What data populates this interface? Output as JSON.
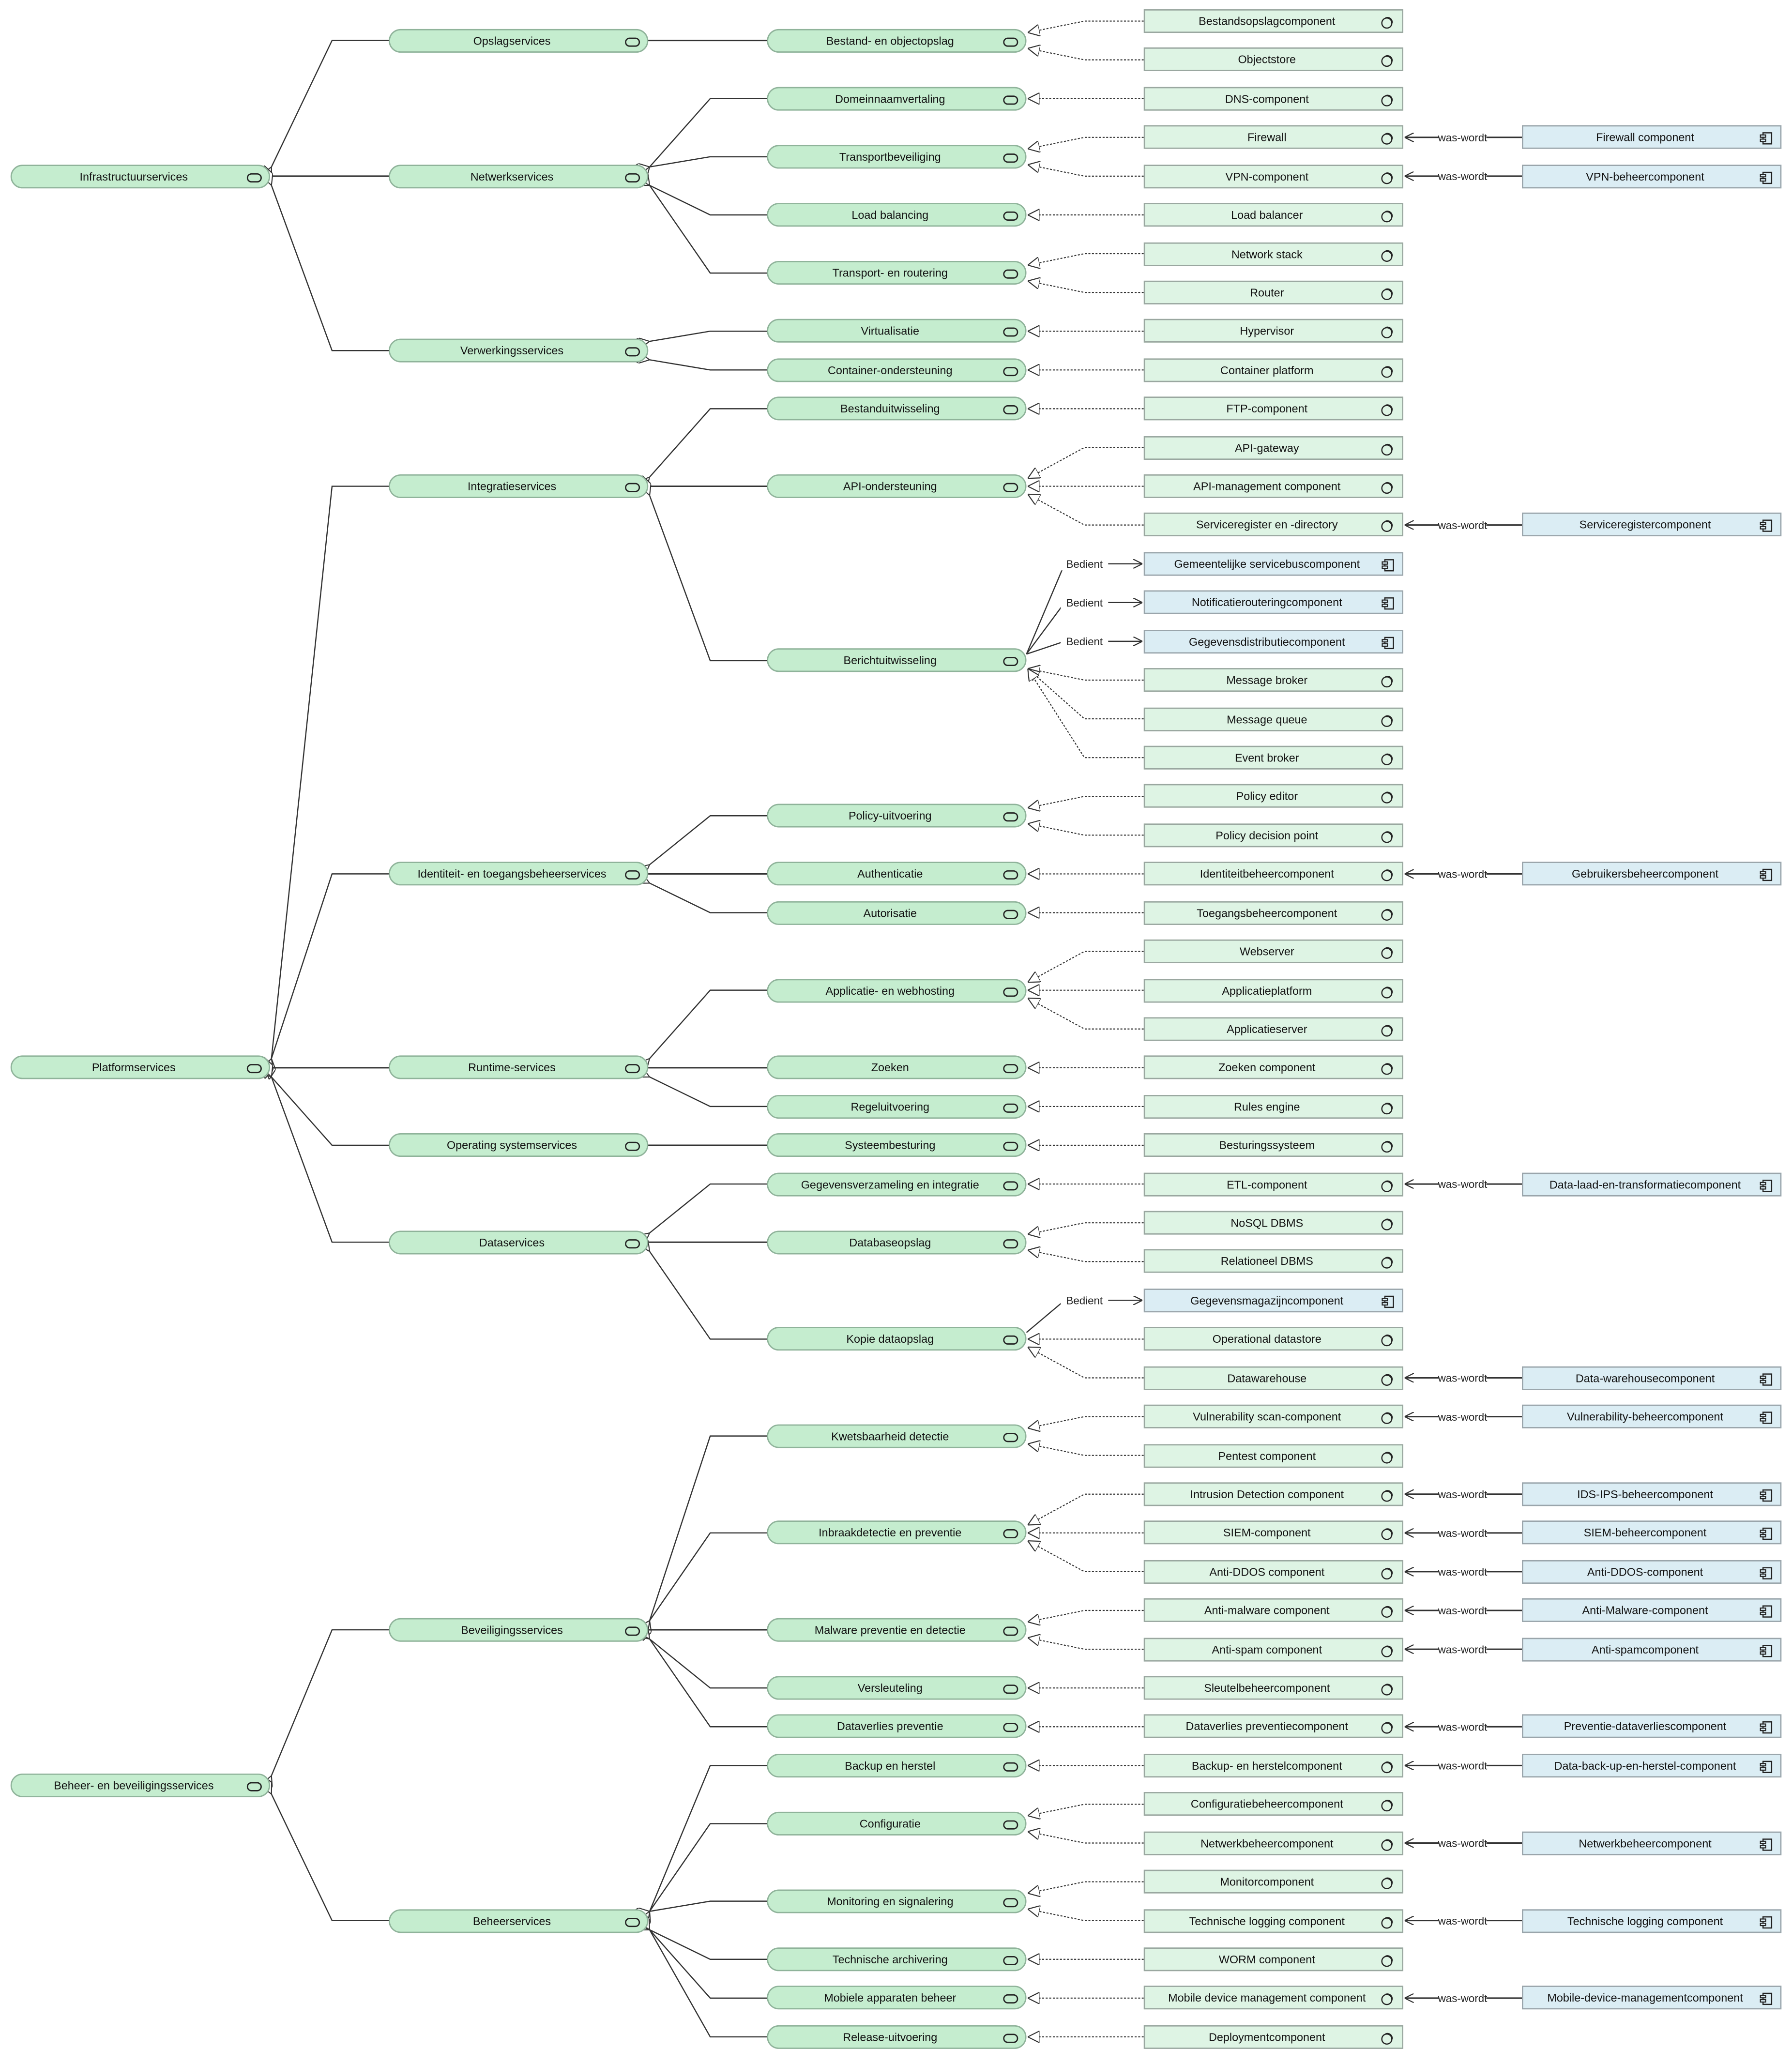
{
  "relation_labels": {
    "successor": "was-wordt",
    "serves": "Bedient"
  },
  "colors": {
    "service_fill": "#c5edcf",
    "system_software_fill": "#def4e4",
    "application_component_fill": "#dbedf4",
    "line": "#333333"
  },
  "icons": {
    "service": "service-icon",
    "system_software": "system-software-icon",
    "application_component": "component-icon"
  },
  "diagram": {
    "domains": [
      {
        "label": "Infrastructuurservices",
        "groups": [
          {
            "label": "Opslagservices",
            "services": [
              {
                "label": "Bestand- en objectopslag",
                "elements": [
                  {
                    "label": "Bestandsopslagcomponent",
                    "kind": "system-software",
                    "relation": "realizes"
                  },
                  {
                    "label": "Objectstore",
                    "kind": "system-software",
                    "relation": "realizes"
                  }
                ]
              }
            ]
          },
          {
            "label": "Netwerkservices",
            "services": [
              {
                "label": "Domeinnaamvertaling",
                "elements": [
                  {
                    "label": "DNS-component",
                    "kind": "system-software",
                    "relation": "realizes"
                  }
                ]
              },
              {
                "label": "Transportbeveiliging",
                "elements": [
                  {
                    "label": "Firewall",
                    "kind": "system-software",
                    "relation": "realizes",
                    "successor": "Firewall component"
                  },
                  {
                    "label": "VPN-component",
                    "kind": "system-software",
                    "relation": "realizes",
                    "successor": "VPN-beheercomponent"
                  }
                ]
              },
              {
                "label": "Load balancing",
                "elements": [
                  {
                    "label": "Load balancer",
                    "kind": "system-software",
                    "relation": "realizes"
                  }
                ]
              },
              {
                "label": "Transport- en routering",
                "elements": [
                  {
                    "label": "Network stack",
                    "kind": "system-software",
                    "relation": "realizes"
                  },
                  {
                    "label": "Router",
                    "kind": "system-software",
                    "relation": "realizes"
                  }
                ]
              }
            ]
          },
          {
            "label": "Verwerkingsservices",
            "services": [
              {
                "label": "Virtualisatie",
                "elements": [
                  {
                    "label": "Hypervisor",
                    "kind": "system-software",
                    "relation": "realizes"
                  }
                ]
              },
              {
                "label": "Container-ondersteuning",
                "elements": [
                  {
                    "label": "Container platform",
                    "kind": "system-software",
                    "relation": "realizes"
                  }
                ]
              }
            ]
          }
        ]
      },
      {
        "label": "Platformservices",
        "groups": [
          {
            "label": "Integratieservices",
            "services": [
              {
                "label": "Bestanduitwisseling",
                "elements": [
                  {
                    "label": "FTP-component",
                    "kind": "system-software",
                    "relation": "realizes"
                  }
                ]
              },
              {
                "label": "API-ondersteuning",
                "elements": [
                  {
                    "label": "API-gateway",
                    "kind": "system-software",
                    "relation": "realizes"
                  },
                  {
                    "label": "API-management component",
                    "kind": "system-software",
                    "relation": "realizes"
                  },
                  {
                    "label": "Serviceregister en -directory",
                    "kind": "system-software",
                    "relation": "realizes",
                    "successor": "Serviceregistercomponent"
                  }
                ]
              },
              {
                "label": "Berichtuitwisseling",
                "elements": [
                  {
                    "label": "Gemeentelijke servicebuscomponent",
                    "kind": "application-component",
                    "relation": "serves"
                  },
                  {
                    "label": "Notificatierouteringcomponent",
                    "kind": "application-component",
                    "relation": "serves"
                  },
                  {
                    "label": "Gegevensdistributiecomponent",
                    "kind": "application-component",
                    "relation": "serves"
                  },
                  {
                    "label": "Message broker",
                    "kind": "system-software",
                    "relation": "realizes"
                  },
                  {
                    "label": "Message queue",
                    "kind": "system-software",
                    "relation": "realizes"
                  },
                  {
                    "label": "Event broker",
                    "kind": "system-software",
                    "relation": "realizes"
                  }
                ]
              }
            ]
          },
          {
            "label": "Identiteit- en toegangsbeheerservices",
            "services": [
              {
                "label": "Policy-uitvoering",
                "elements": [
                  {
                    "label": "Policy editor",
                    "kind": "system-software",
                    "relation": "realizes"
                  },
                  {
                    "label": "Policy decision point",
                    "kind": "system-software",
                    "relation": "realizes"
                  }
                ]
              },
              {
                "label": "Authenticatie",
                "elements": [
                  {
                    "label": "Identiteitbeheercomponent",
                    "kind": "system-software",
                    "relation": "realizes",
                    "successor": "Gebruikersbeheercomponent"
                  }
                ]
              },
              {
                "label": "Autorisatie",
                "elements": [
                  {
                    "label": "Toegangsbeheercomponent",
                    "kind": "system-software",
                    "relation": "realizes"
                  }
                ]
              }
            ]
          },
          {
            "label": "Runtime-services",
            "services": [
              {
                "label": "Applicatie- en webhosting",
                "elements": [
                  {
                    "label": "Webserver",
                    "kind": "system-software",
                    "relation": "realizes"
                  },
                  {
                    "label": "Applicatieplatform",
                    "kind": "system-software",
                    "relation": "realizes"
                  },
                  {
                    "label": "Applicatieserver",
                    "kind": "system-software",
                    "relation": "realizes"
                  }
                ]
              },
              {
                "label": "Zoeken",
                "elements": [
                  {
                    "label": "Zoeken component",
                    "kind": "system-software",
                    "relation": "realizes"
                  }
                ]
              },
              {
                "label": "Regeluitvoering",
                "elements": [
                  {
                    "label": "Rules engine",
                    "kind": "system-software",
                    "relation": "realizes"
                  }
                ]
              }
            ]
          },
          {
            "label": "Operating systemservices",
            "services": [
              {
                "label": "Systeembesturing",
                "elements": [
                  {
                    "label": "Besturingssysteem",
                    "kind": "system-software",
                    "relation": "realizes"
                  }
                ]
              }
            ]
          },
          {
            "label": "Dataservices",
            "services": [
              {
                "label": "Gegevensverzameling en integratie",
                "elements": [
                  {
                    "label": "ETL-component",
                    "kind": "system-software",
                    "relation": "realizes",
                    "successor": "Data-laad-en-transformatiecomponent"
                  }
                ]
              },
              {
                "label": "Databaseopslag",
                "elements": [
                  {
                    "label": "NoSQL DBMS",
                    "kind": "system-software",
                    "relation": "realizes"
                  },
                  {
                    "label": "Relationeel DBMS",
                    "kind": "system-software",
                    "relation": "realizes"
                  }
                ]
              },
              {
                "label": "Kopie dataopslag",
                "elements": [
                  {
                    "label": "Gegevensmagazijncomponent",
                    "kind": "application-component",
                    "relation": "serves"
                  },
                  {
                    "label": "Operational datastore",
                    "kind": "system-software",
                    "relation": "realizes"
                  },
                  {
                    "label": "Datawarehouse",
                    "kind": "system-software",
                    "relation": "realizes",
                    "successor": "Data-warehousecomponent"
                  }
                ]
              }
            ]
          }
        ]
      },
      {
        "label": "Beheer- en beveiligingsservices",
        "groups": [
          {
            "label": "Beveiligingsservices",
            "services": [
              {
                "label": "Kwetsbaarheid detectie",
                "elements": [
                  {
                    "label": "Vulnerability scan-component",
                    "kind": "system-software",
                    "relation": "realizes",
                    "successor": "Vulnerability-beheercomponent"
                  },
                  {
                    "label": "Pentest component",
                    "kind": "system-software",
                    "relation": "realizes"
                  }
                ]
              },
              {
                "label": "Inbraakdetectie en preventie",
                "elements": [
                  {
                    "label": "Intrusion Detection component",
                    "kind": "system-software",
                    "relation": "realizes",
                    "successor": "IDS-IPS-beheercomponent"
                  },
                  {
                    "label": "SIEM-component",
                    "kind": "system-software",
                    "relation": "realizes",
                    "successor": "SIEM-beheercomponent"
                  },
                  {
                    "label": "Anti-DDOS component",
                    "kind": "system-software",
                    "relation": "realizes",
                    "successor": "Anti-DDOS-component"
                  }
                ]
              },
              {
                "label": "Malware preventie en detectie",
                "elements": [
                  {
                    "label": "Anti-malware component",
                    "kind": "system-software",
                    "relation": "realizes",
                    "successor": "Anti-Malware-component"
                  },
                  {
                    "label": "Anti-spam component",
                    "kind": "system-software",
                    "relation": "realizes",
                    "successor": "Anti-spamcomponent"
                  }
                ]
              },
              {
                "label": "Versleuteling",
                "elements": [
                  {
                    "label": "Sleutelbeheercomponent",
                    "kind": "system-software",
                    "relation": "realizes"
                  }
                ]
              },
              {
                "label": "Dataverlies preventie",
                "elements": [
                  {
                    "label": "Dataverlies preventiecomponent",
                    "kind": "system-software",
                    "relation": "realizes",
                    "successor": "Preventie-dataverliescomponent"
                  }
                ]
              }
            ]
          },
          {
            "label": "Beheerservices",
            "services": [
              {
                "label": "Backup en herstel",
                "elements": [
                  {
                    "label": "Backup- en herstelcomponent",
                    "kind": "system-software",
                    "relation": "realizes",
                    "successor": "Data-back-up-en-herstel-component"
                  }
                ]
              },
              {
                "label": "Configuratie",
                "elements": [
                  {
                    "label": "Configuratiebeheercomponent",
                    "kind": "system-software",
                    "relation": "realizes"
                  },
                  {
                    "label": "Netwerkbeheercomponent",
                    "kind": "system-software",
                    "relation": "realizes",
                    "successor": "Netwerkbeheercomponent"
                  }
                ]
              },
              {
                "label": "Monitoring en signalering",
                "elements": [
                  {
                    "label": "Monitorcomponent",
                    "kind": "system-software",
                    "relation": "realizes"
                  },
                  {
                    "label": "Technische logging component",
                    "kind": "system-software",
                    "relation": "realizes",
                    "successor": "Technische logging component"
                  }
                ]
              },
              {
                "label": "Technische archivering",
                "elements": [
                  {
                    "label": "WORM component",
                    "kind": "system-software",
                    "relation": "realizes"
                  }
                ]
              },
              {
                "label": "Mobiele apparaten beheer",
                "elements": [
                  {
                    "label": "Mobile device management component",
                    "kind": "system-software",
                    "relation": "realizes",
                    "successor": "Mobile-device-managementcomponent"
                  }
                ]
              },
              {
                "label": "Release-uitvoering",
                "elements": [
                  {
                    "label": "Deploymentcomponent",
                    "kind": "system-software",
                    "relation": "realizes"
                  }
                ]
              }
            ]
          }
        ]
      }
    ]
  }
}
